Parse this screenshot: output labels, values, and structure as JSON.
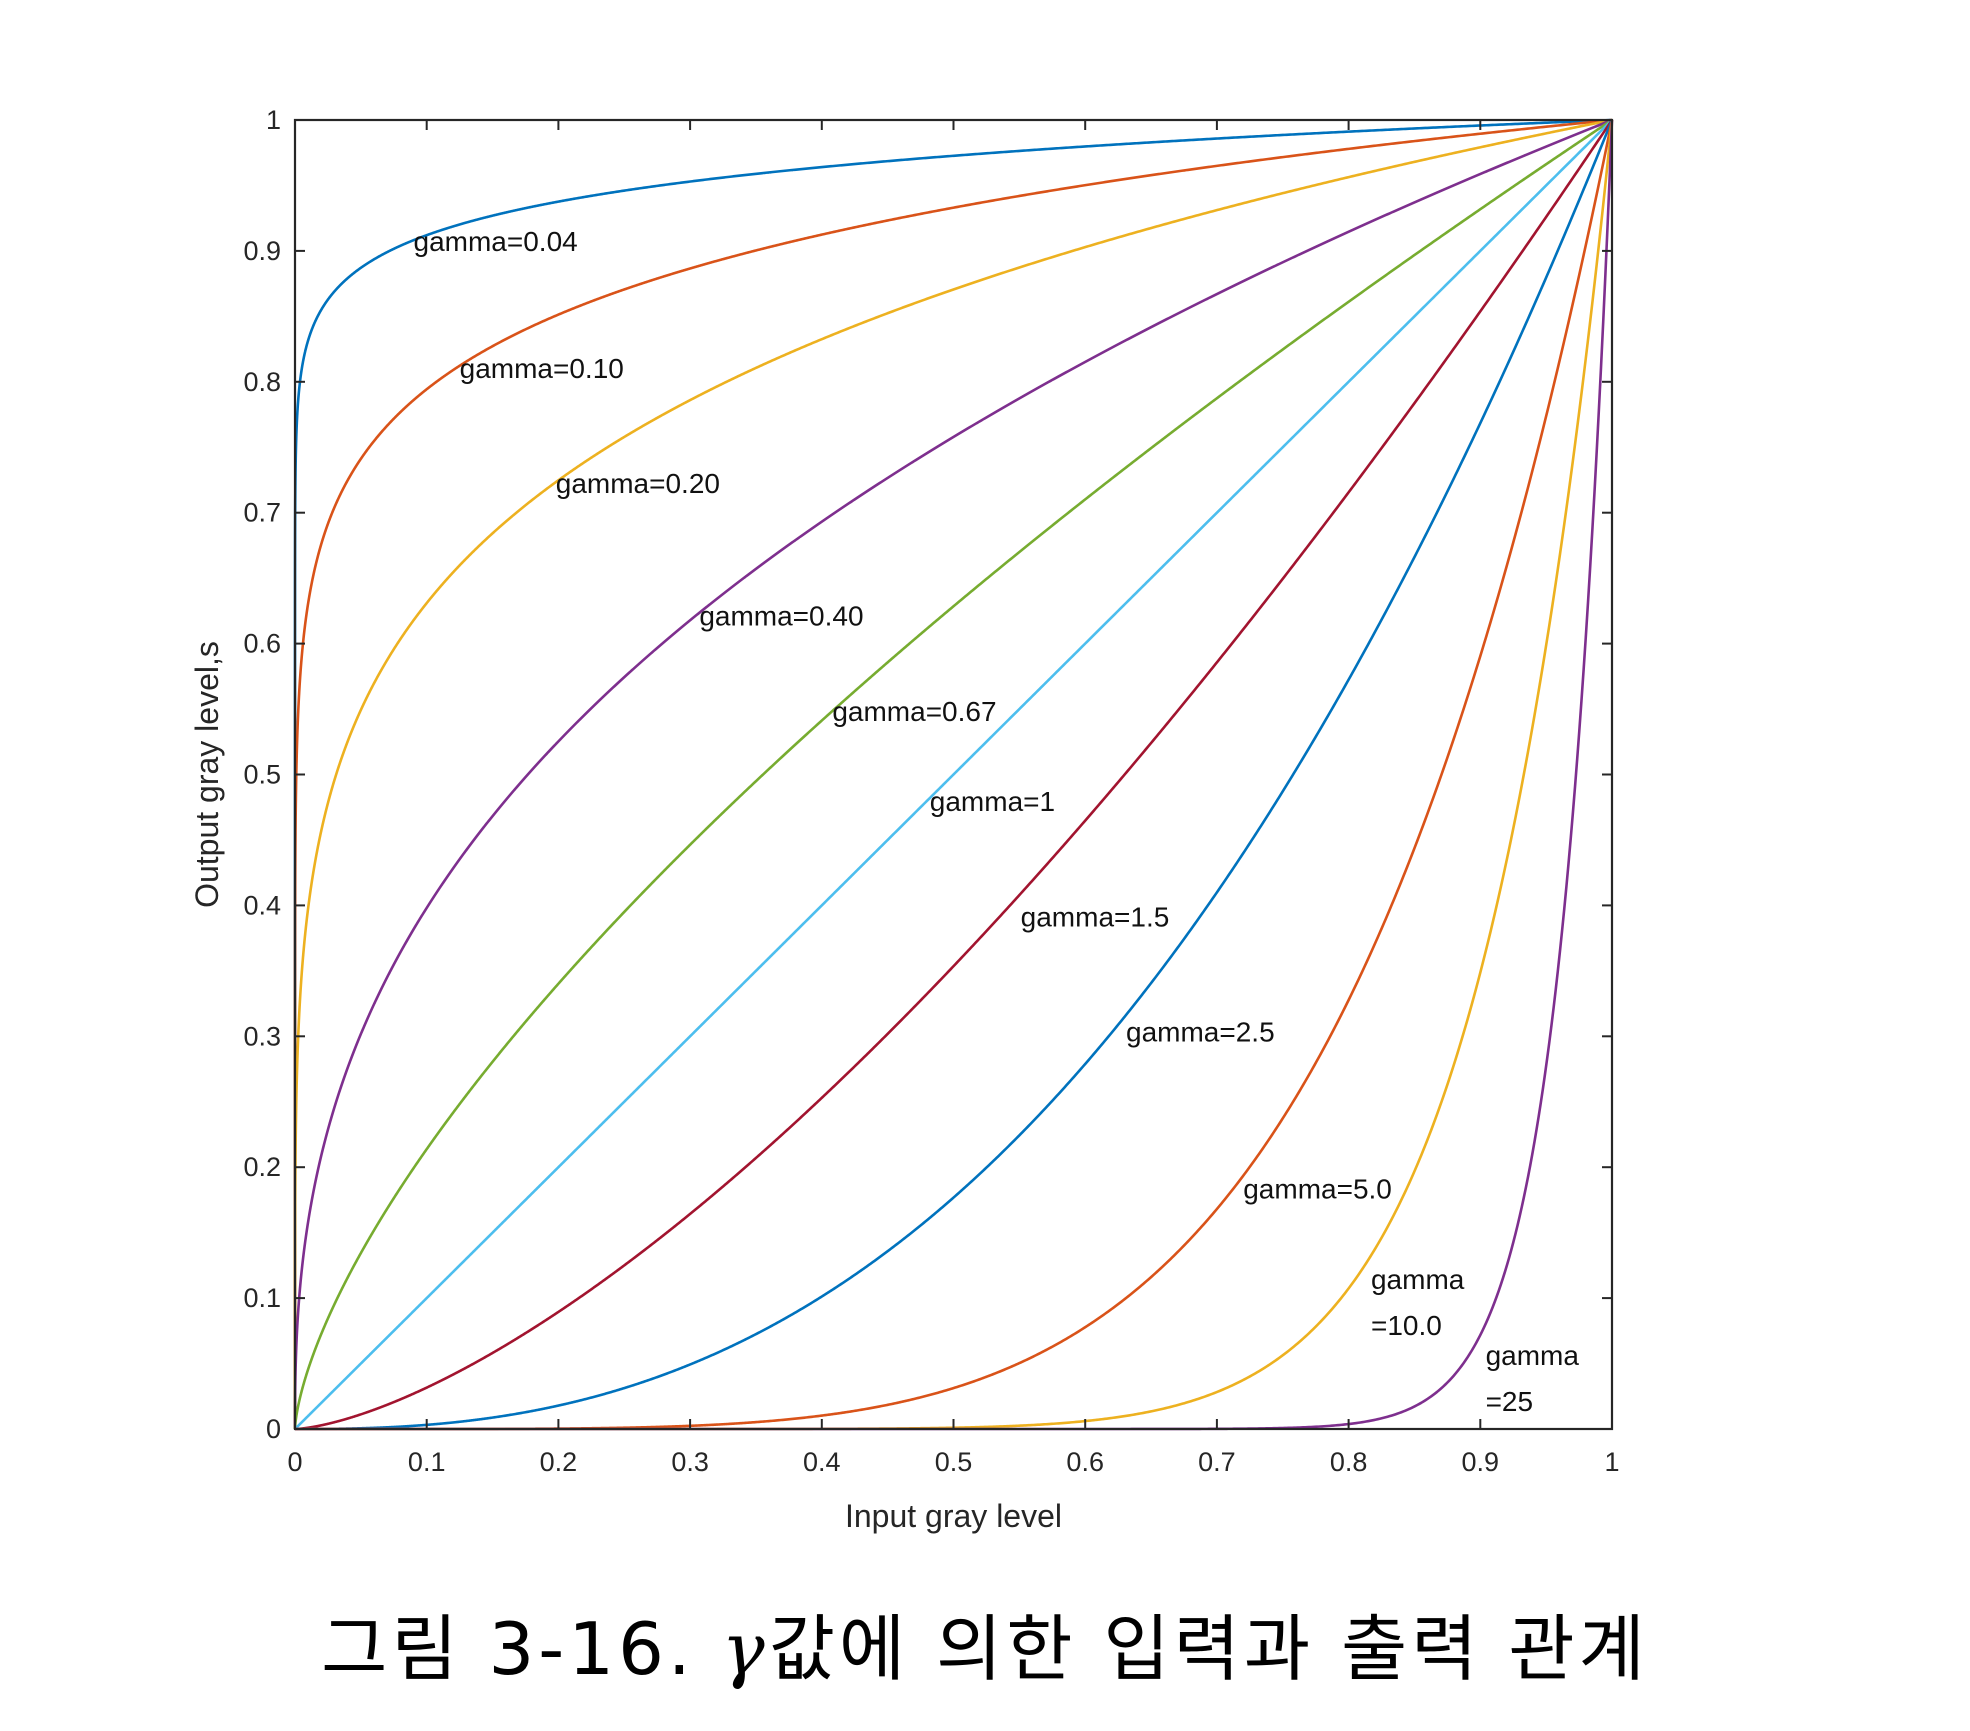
{
  "caption": {
    "prefix": "그림 3-16. ",
    "symbol": "γ",
    "suffix": "값에 의한 입력과 출력 관계"
  },
  "chart_data": {
    "type": "line",
    "title": "",
    "xlabel": "Input gray level",
    "ylabel": "Output gray level,s",
    "xlim": [
      0,
      1
    ],
    "ylim": [
      0,
      1
    ],
    "grid": false,
    "xticks": [
      "0",
      "0.1",
      "0.2",
      "0.3",
      "0.4",
      "0.5",
      "0.6",
      "0.7",
      "0.8",
      "0.9",
      "1"
    ],
    "yticks": [
      "0",
      "0.1",
      "0.2",
      "0.3",
      "0.4",
      "0.5",
      "0.6",
      "0.7",
      "0.8",
      "0.9",
      "1"
    ],
    "function": "s = r^gamma",
    "series": [
      {
        "gamma": 0.04,
        "color": "#0072BD",
        "label": [
          "gamma=0.04"
        ],
        "label_at": [
          0.09,
          0.9
        ]
      },
      {
        "gamma": 0.1,
        "color": "#D95319",
        "label": [
          "gamma=0.10"
        ],
        "label_at": [
          0.125,
          0.803
        ]
      },
      {
        "gamma": 0.2,
        "color": "#EDB120",
        "label": [
          "gamma=0.20"
        ],
        "label_at": [
          0.198,
          0.715
        ]
      },
      {
        "gamma": 0.4,
        "color": "#7E2F8E",
        "label": [
          "gamma=0.40"
        ],
        "label_at": [
          0.307,
          0.614
        ]
      },
      {
        "gamma": 0.67,
        "color": "#77AC30",
        "label": [
          "gamma=0.67"
        ],
        "label_at": [
          0.408,
          0.541
        ]
      },
      {
        "gamma": 1,
        "color": "#4DBEEE",
        "label": [
          "gamma=1"
        ],
        "label_at": [
          0.482,
          0.472
        ]
      },
      {
        "gamma": 1.5,
        "color": "#A2142F",
        "label": [
          "gamma=1.5"
        ],
        "label_at": [
          0.551,
          0.384
        ]
      },
      {
        "gamma": 2.5,
        "color": "#0072BD",
        "label": [
          "gamma=2.5"
        ],
        "label_at": [
          0.631,
          0.296
        ]
      },
      {
        "gamma": 5.0,
        "color": "#D95319",
        "label": [
          "gamma=5.0"
        ],
        "label_at": [
          0.72,
          0.176
        ]
      },
      {
        "gamma": 10.0,
        "color": "#EDB120",
        "label": [
          "gamma",
          "=10.0"
        ],
        "label_at": [
          0.817,
          0.107
        ]
      },
      {
        "gamma": 25,
        "color": "#7E2F8E",
        "label": [
          "gamma",
          "=25"
        ],
        "label_at": [
          0.904,
          0.049
        ]
      }
    ]
  }
}
